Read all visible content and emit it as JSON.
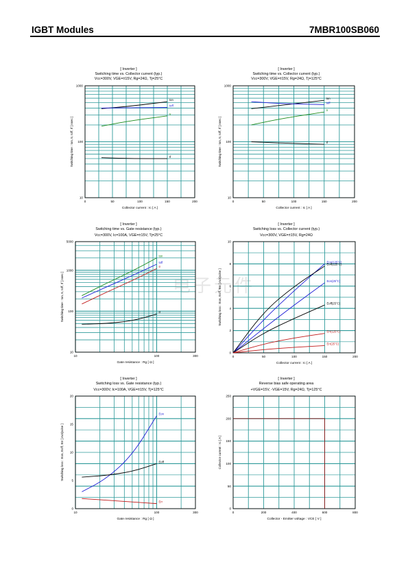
{
  "header": {
    "left": "IGBT Modules",
    "right": "7MBR100SB060"
  },
  "chart_data": [
    {
      "id": "p1",
      "type": "line",
      "title_lines": [
        "[ Inverter ]",
        "Switching time  vs.  Collector current  (typ.)",
        "Vcc=300V, VGE=±15V, Rg=24Ω, Tj=25°C"
      ],
      "xlabel": "Collector current  :  Ic  [ A ]",
      "ylabel": "Switching time  :  ton, tr, toff, tf  [ nsec ]",
      "xscale": "linear",
      "yscale": "log",
      "xlim": [
        0,
        200
      ],
      "ylim": [
        10,
        1000
      ],
      "xticks": [
        "0",
        "50",
        "100",
        "150",
        "200"
      ],
      "yticks": [
        "10",
        "100",
        "1000"
      ],
      "series": [
        {
          "name": "ton",
          "color": "#000000",
          "x": [
            30,
            80,
            150
          ],
          "y": [
            390,
            430,
            520
          ]
        },
        {
          "name": "toff",
          "color": "#1a1ad6",
          "x": [
            30,
            80,
            150
          ],
          "y": [
            400,
            405,
            410
          ]
        },
        {
          "name": "tr",
          "color": "#1a8a1a",
          "x": [
            30,
            80,
            150
          ],
          "y": [
            190,
            235,
            290
          ]
        },
        {
          "name": "tf",
          "color": "#000000",
          "x": [
            30,
            80,
            150
          ],
          "y": [
            52,
            50,
            50
          ]
        }
      ]
    },
    {
      "id": "p2",
      "type": "line",
      "title_lines": [
        "[ Inverter ]",
        "Switching time  vs.  Collector current  (typ.)",
        "Vcc=300V, VGE=±15V, Rg=24Ω, Tj=125°C"
      ],
      "xlabel": "Collector current  :  Ic  [ A ]",
      "ylabel": "Switching time  :  ton, tr, toff, tf  [ nsec ]",
      "xscale": "linear",
      "yscale": "log",
      "xlim": [
        0,
        200
      ],
      "ylim": [
        10,
        1000
      ],
      "xticks": [
        "0",
        "50",
        "100",
        "150",
        "200"
      ],
      "yticks": [
        "10",
        "100",
        "1000"
      ],
      "series": [
        {
          "name": "ton",
          "color": "#000000",
          "x": [
            30,
            80,
            150
          ],
          "y": [
            390,
            450,
            550
          ]
        },
        {
          "name": "toff",
          "color": "#1a1ad6",
          "x": [
            30,
            80,
            150
          ],
          "y": [
            520,
            480,
            460
          ]
        },
        {
          "name": "tr",
          "color": "#1a8a1a",
          "x": [
            30,
            80,
            150
          ],
          "y": [
            200,
            260,
            340
          ]
        },
        {
          "name": "tf",
          "color": "#000000",
          "x": [
            30,
            80,
            150
          ],
          "y": [
            100,
            95,
            90
          ]
        }
      ]
    },
    {
      "id": "p3",
      "type": "line",
      "title_lines": [
        "[ Inverter ]",
        "Switching time  vs.  Gate resistance  (typ.)",
        "Vcc=300V, Ic=100A, VGE=±15V, Tj=25°C"
      ],
      "xlabel": "Gate resistance  :  Rg  [  Ω  ]",
      "ylabel": "Switching time  :  ton, tr, toff, tf  [ nsec ]",
      "xscale": "log",
      "yscale": "log",
      "xlim": [
        10,
        300
      ],
      "ylim": [
        10,
        5000
      ],
      "xticks": [
        "10",
        "100",
        "300"
      ],
      "yticks": [
        "10",
        "100",
        "1000",
        "5000"
      ],
      "series": [
        {
          "name": "ton",
          "color": "#1a8a1a",
          "x": [
            12,
            24,
            50,
            100
          ],
          "y": [
            240,
            480,
            950,
            2000
          ]
        },
        {
          "name": "toff",
          "color": "#1a1ad6",
          "x": [
            12,
            24,
            50,
            100
          ],
          "y": [
            210,
            390,
            740,
            1400
          ]
        },
        {
          "name": "tr",
          "color": "#c01818",
          "x": [
            12,
            24,
            50,
            100
          ],
          "y": [
            150,
            290,
            560,
            1100
          ]
        },
        {
          "name": "tf",
          "color": "#000000",
          "x": [
            12,
            24,
            50,
            100
          ],
          "y": [
            48,
            50,
            58,
            85
          ]
        }
      ]
    },
    {
      "id": "p4",
      "type": "line",
      "title_lines": [
        "[ Inverter ]",
        "Switching loss  vs.  Collector current  (typ.)",
        "Vcc=300V, VGE=±15V, Rg=24Ω"
      ],
      "xlabel": "Collector current  :  Ic  [ A ]",
      "ylabel": "Switching loss  :  Eon, Eoff, Err  [ mJ/pulse ]",
      "xscale": "linear",
      "yscale": "linear",
      "xlim": [
        0,
        200
      ],
      "ylim": [
        0,
        10
      ],
      "xticks": [
        "0",
        "50",
        "100",
        "150",
        "200"
      ],
      "yticks": [
        "0",
        "2",
        "4",
        "6",
        "8",
        "10"
      ],
      "series": [
        {
          "name": "Eon(125°C)",
          "color": "#1a1ad6",
          "x": [
            0,
            50,
            100,
            150
          ],
          "y": [
            0,
            3.0,
            5.6,
            8.0
          ]
        },
        {
          "name": "Eoff(125°C)",
          "color": "#000000",
          "x": [
            0,
            50,
            100,
            150
          ],
          "y": [
            0,
            3.7,
            6.0,
            7.8
          ]
        },
        {
          "name": "Eon(25°C)",
          "color": "#1a1ad6",
          "x": [
            0,
            50,
            100,
            150
          ],
          "y": [
            0,
            2.2,
            4.3,
            6.3
          ]
        },
        {
          "name": "Eoff(25°C)",
          "color": "#000000",
          "x": [
            0,
            50,
            100,
            150
          ],
          "y": [
            0,
            1.8,
            3.1,
            4.3
          ]
        },
        {
          "name": "Err(125°C)",
          "color": "#c01818",
          "x": [
            0,
            50,
            100,
            150
          ],
          "y": [
            0,
            0.8,
            1.35,
            1.75
          ]
        },
        {
          "name": "Err(25°C)",
          "color": "#c01818",
          "x": [
            0,
            50,
            100,
            150
          ],
          "y": [
            0,
            0.3,
            0.5,
            0.65
          ]
        }
      ]
    },
    {
      "id": "p5",
      "type": "line",
      "title_lines": [
        "[ Inverter ]",
        "Switching loss  vs.  Gate resistance (typ.)",
        "Vcc=300V, Ic=100A, VGE=±15V, Tj=125°C"
      ],
      "xlabel": "Gate resistance  :  Rg  [  Ω  ]",
      "ylabel": "Switching loss  :  Eon, Eoff, Err  [ mJ/pulse ]",
      "xscale": "log",
      "yscale": "linear",
      "xlim": [
        10,
        300
      ],
      "ylim": [
        0,
        20
      ],
      "xticks": [
        "10",
        "100",
        "300"
      ],
      "yticks": [
        "0",
        "5",
        "10",
        "15",
        "20"
      ],
      "series": [
        {
          "name": "Eon",
          "color": "#1a1ad6",
          "x": [
            12,
            24,
            50,
            100
          ],
          "y": [
            3.0,
            5.3,
            9.5,
            16.5
          ]
        },
        {
          "name": "Eoff",
          "color": "#000000",
          "x": [
            12,
            24,
            50,
            100
          ],
          "y": [
            5.6,
            5.9,
            6.6,
            8.0
          ]
        },
        {
          "name": "Err",
          "color": "#c01818",
          "x": [
            12,
            24,
            50,
            100
          ],
          "y": [
            1.8,
            1.5,
            1.2,
            0.9
          ]
        }
      ]
    },
    {
      "id": "p6",
      "type": "line",
      "title_lines": [
        "[ Inverter ]",
        "Reverse bias safe operating area",
        "+VGE=15V, -VGE=15V, Rg=24Ω, Tj=125°C"
      ],
      "xlabel": "Collector - Emitter voltage  :  VCE  [ V ]",
      "ylabel": "Collector current  :  Ic  [ A ]",
      "xscale": "linear",
      "yscale": "linear",
      "xlim": [
        0,
        800
      ],
      "ylim": [
        0,
        250
      ],
      "xticks": [
        "0",
        "200",
        "400",
        "600",
        "800"
      ],
      "yticks": [
        "0",
        "50",
        "100",
        "150",
        "200",
        "250"
      ],
      "series": [
        {
          "name": "",
          "color": "#8b1010",
          "x": [
            0,
            600,
            600
          ],
          "y": [
            200,
            200,
            0
          ]
        }
      ]
    }
  ]
}
